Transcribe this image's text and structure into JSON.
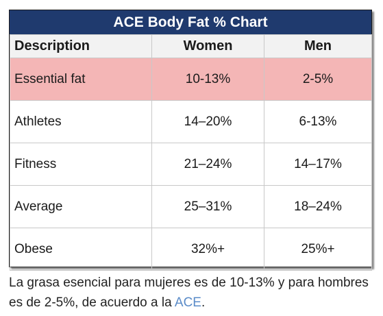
{
  "chart_data": {
    "type": "table",
    "title": "ACE Body Fat % Chart",
    "columns": [
      "Description",
      "Women",
      "Men"
    ],
    "rows": [
      {
        "description": "Essential fat",
        "women": "10-13%",
        "men": "2-5%",
        "highlighted": true
      },
      {
        "description": "Athletes",
        "women": "14–20%",
        "men": "6-13%",
        "highlighted": false
      },
      {
        "description": "Fitness",
        "women": "21–24%",
        "men": "14–17%",
        "highlighted": false
      },
      {
        "description": "Average",
        "women": "25–31%",
        "men": "18–24%",
        "highlighted": false
      },
      {
        "description": "Obese",
        "women": "32%+",
        "men": "25%+",
        "highlighted": false
      }
    ]
  },
  "caption": {
    "text_before": "La grasa esencial para mujeres es de 10-13% y para hombres es de 2-5%, de acuerdo a la ",
    "link_text": "ACE",
    "text_after": "."
  },
  "colors": {
    "title_bar": "#1f3a6e",
    "header_row": "#f2f2f2",
    "highlight_row": "#f4b6b6",
    "link": "#5a8bc8"
  }
}
